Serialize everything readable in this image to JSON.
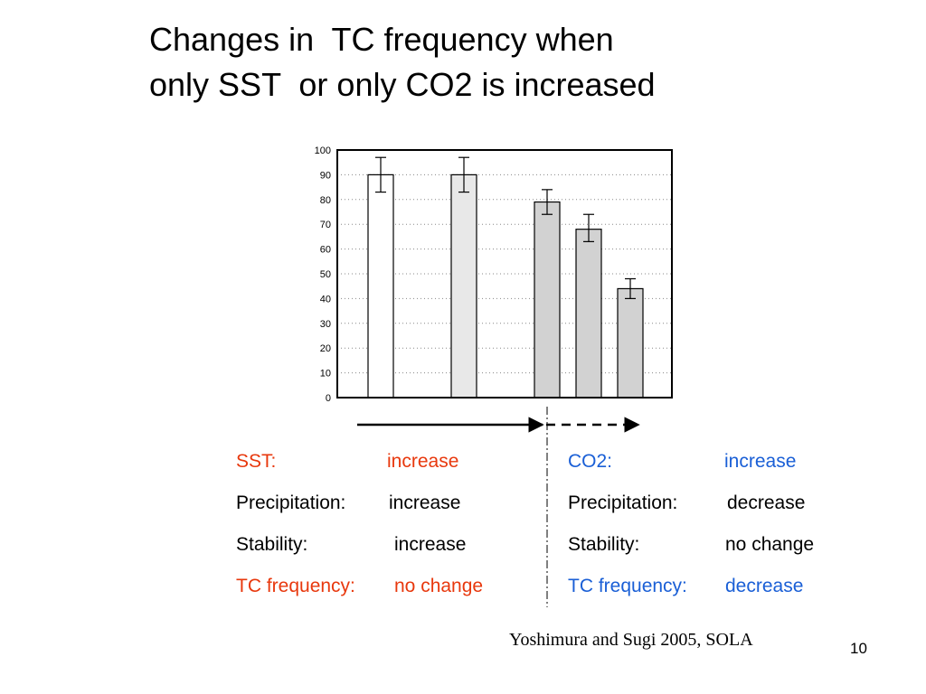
{
  "slide": {
    "title_line1": "Changes in  TC frequency when",
    "title_line2": "only SST  or only CO2 is increased",
    "citation": "Yoshimura and Sugi 2005, SOLA",
    "page_number": "10"
  },
  "chart_data": {
    "type": "bar",
    "ylim": [
      0,
      100
    ],
    "yticks": [
      0,
      10,
      20,
      30,
      40,
      50,
      60,
      70,
      80,
      90,
      100
    ],
    "grid": true,
    "values": [
      90,
      90,
      79,
      68,
      44
    ],
    "error_low": [
      83,
      83,
      74,
      63,
      40
    ],
    "error_high": [
      97,
      97,
      84,
      74,
      48
    ],
    "bar_colors": [
      "#ffffff",
      "#e8e8e8",
      "#d2d2d2",
      "#d2d2d2",
      "#d2d2d2"
    ],
    "axis_color": "#000000",
    "grid_color": "#888888"
  },
  "panels": {
    "left": {
      "color_highlight": "#e8380d",
      "rows": [
        {
          "label": "SST:",
          "value": "increase",
          "highlight": true
        },
        {
          "label": "Precipitation:",
          "value": "increase",
          "highlight": false
        },
        {
          "label": "Stability:",
          "value": "increase",
          "highlight": false
        },
        {
          "label": "TC frequency:",
          "value": "no change",
          "highlight": true
        }
      ]
    },
    "right": {
      "color_highlight": "#1a5fd6",
      "rows": [
        {
          "label": "CO2:",
          "value": "increase",
          "highlight": true
        },
        {
          "label": "Precipitation:",
          "value": "decrease",
          "highlight": false
        },
        {
          "label": "Stability:",
          "value": "no change",
          "highlight": false
        },
        {
          "label": "TC frequency:",
          "value": "decrease",
          "highlight": true
        }
      ]
    }
  },
  "arrows": {
    "left_style": "solid",
    "right_style": "dashed"
  }
}
